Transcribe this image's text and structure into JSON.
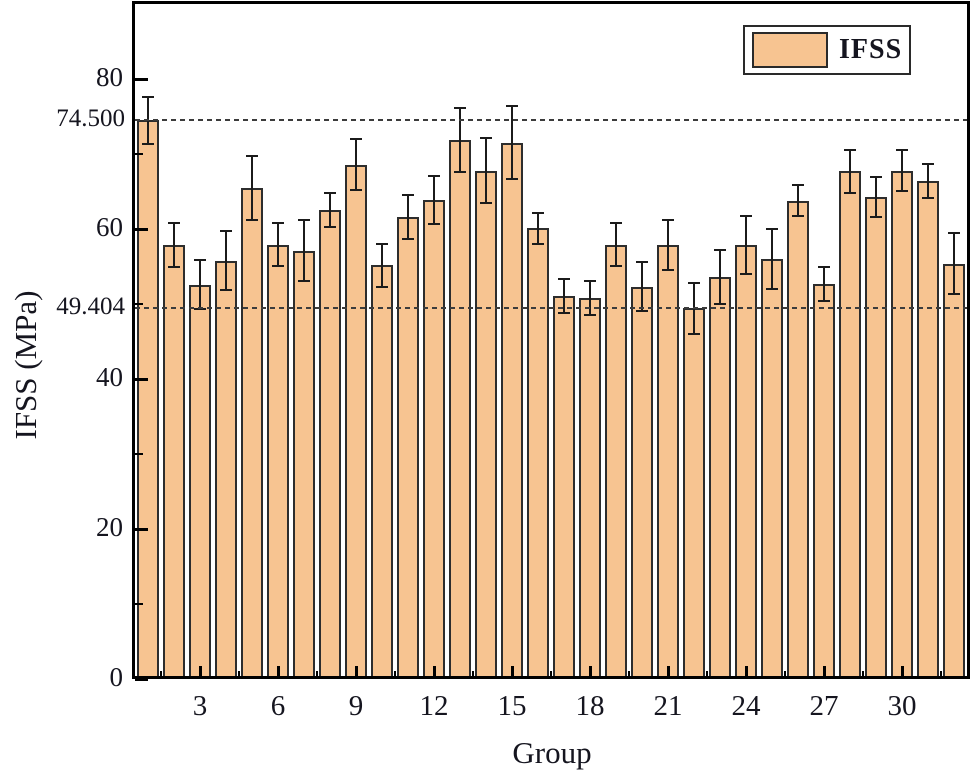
{
  "figure": {
    "background": "#ffffff",
    "frame_color": "#000000",
    "text_color": "#15151f"
  },
  "chart_data": {
    "type": "bar",
    "title": "",
    "xlabel": "Group",
    "ylabel": "IFSS (MPa)",
    "legend_label": "IFSS",
    "legend_position": "top-right",
    "grid": false,
    "bar_fill": "#f7c491",
    "bar_border": "#2d2d2d",
    "error_bar_color": "#1b1b1b",
    "ylim": [
      0,
      90
    ],
    "y_major_ticks": [
      0,
      20,
      40,
      60,
      80
    ],
    "y_minor_ticks": [
      10,
      30,
      50,
      70
    ],
    "x_major_ticks": [
      3,
      6,
      9,
      12,
      15,
      18,
      21,
      24,
      27,
      30
    ],
    "x_minor_ticks": [
      1.5,
      4.5,
      7.5,
      10.5,
      13.5,
      16.5,
      19.5,
      22.5,
      25.5,
      28.5,
      31.5
    ],
    "reference_lines": [
      {
        "label": "74.500",
        "value": 74.5
      },
      {
        "label": "49.404",
        "value": 49.404
      }
    ],
    "categories": [
      1,
      2,
      3,
      4,
      5,
      6,
      7,
      8,
      9,
      10,
      11,
      12,
      13,
      14,
      15,
      16,
      17,
      18,
      19,
      20,
      21,
      22,
      23,
      24,
      25,
      26,
      27,
      28,
      29,
      30,
      31,
      32
    ],
    "series": [
      {
        "name": "IFSS",
        "values": [
          74.5,
          57.9,
          52.6,
          55.8,
          65.5,
          57.9,
          57.1,
          62.5,
          68.6,
          55.2,
          61.6,
          63.9,
          71.9,
          67.8,
          71.5,
          60.1,
          51.1,
          50.8,
          57.9,
          52.3,
          57.9,
          49.404,
          53.6,
          57.9,
          56.0,
          63.8,
          52.7,
          67.7,
          64.3,
          67.8,
          66.4,
          55.4
        ],
        "errors": [
          3.3,
          3.1,
          3.4,
          4.1,
          4.4,
          3.0,
          4.2,
          2.4,
          3.5,
          3.0,
          3.1,
          3.3,
          4.4,
          4.5,
          5.0,
          2.2,
          2.4,
          2.4,
          3.0,
          3.4,
          3.5,
          3.5,
          3.7,
          4.0,
          4.1,
          2.2,
          2.4,
          3.0,
          2.8,
          2.9,
          2.4,
          4.2
        ]
      }
    ]
  }
}
